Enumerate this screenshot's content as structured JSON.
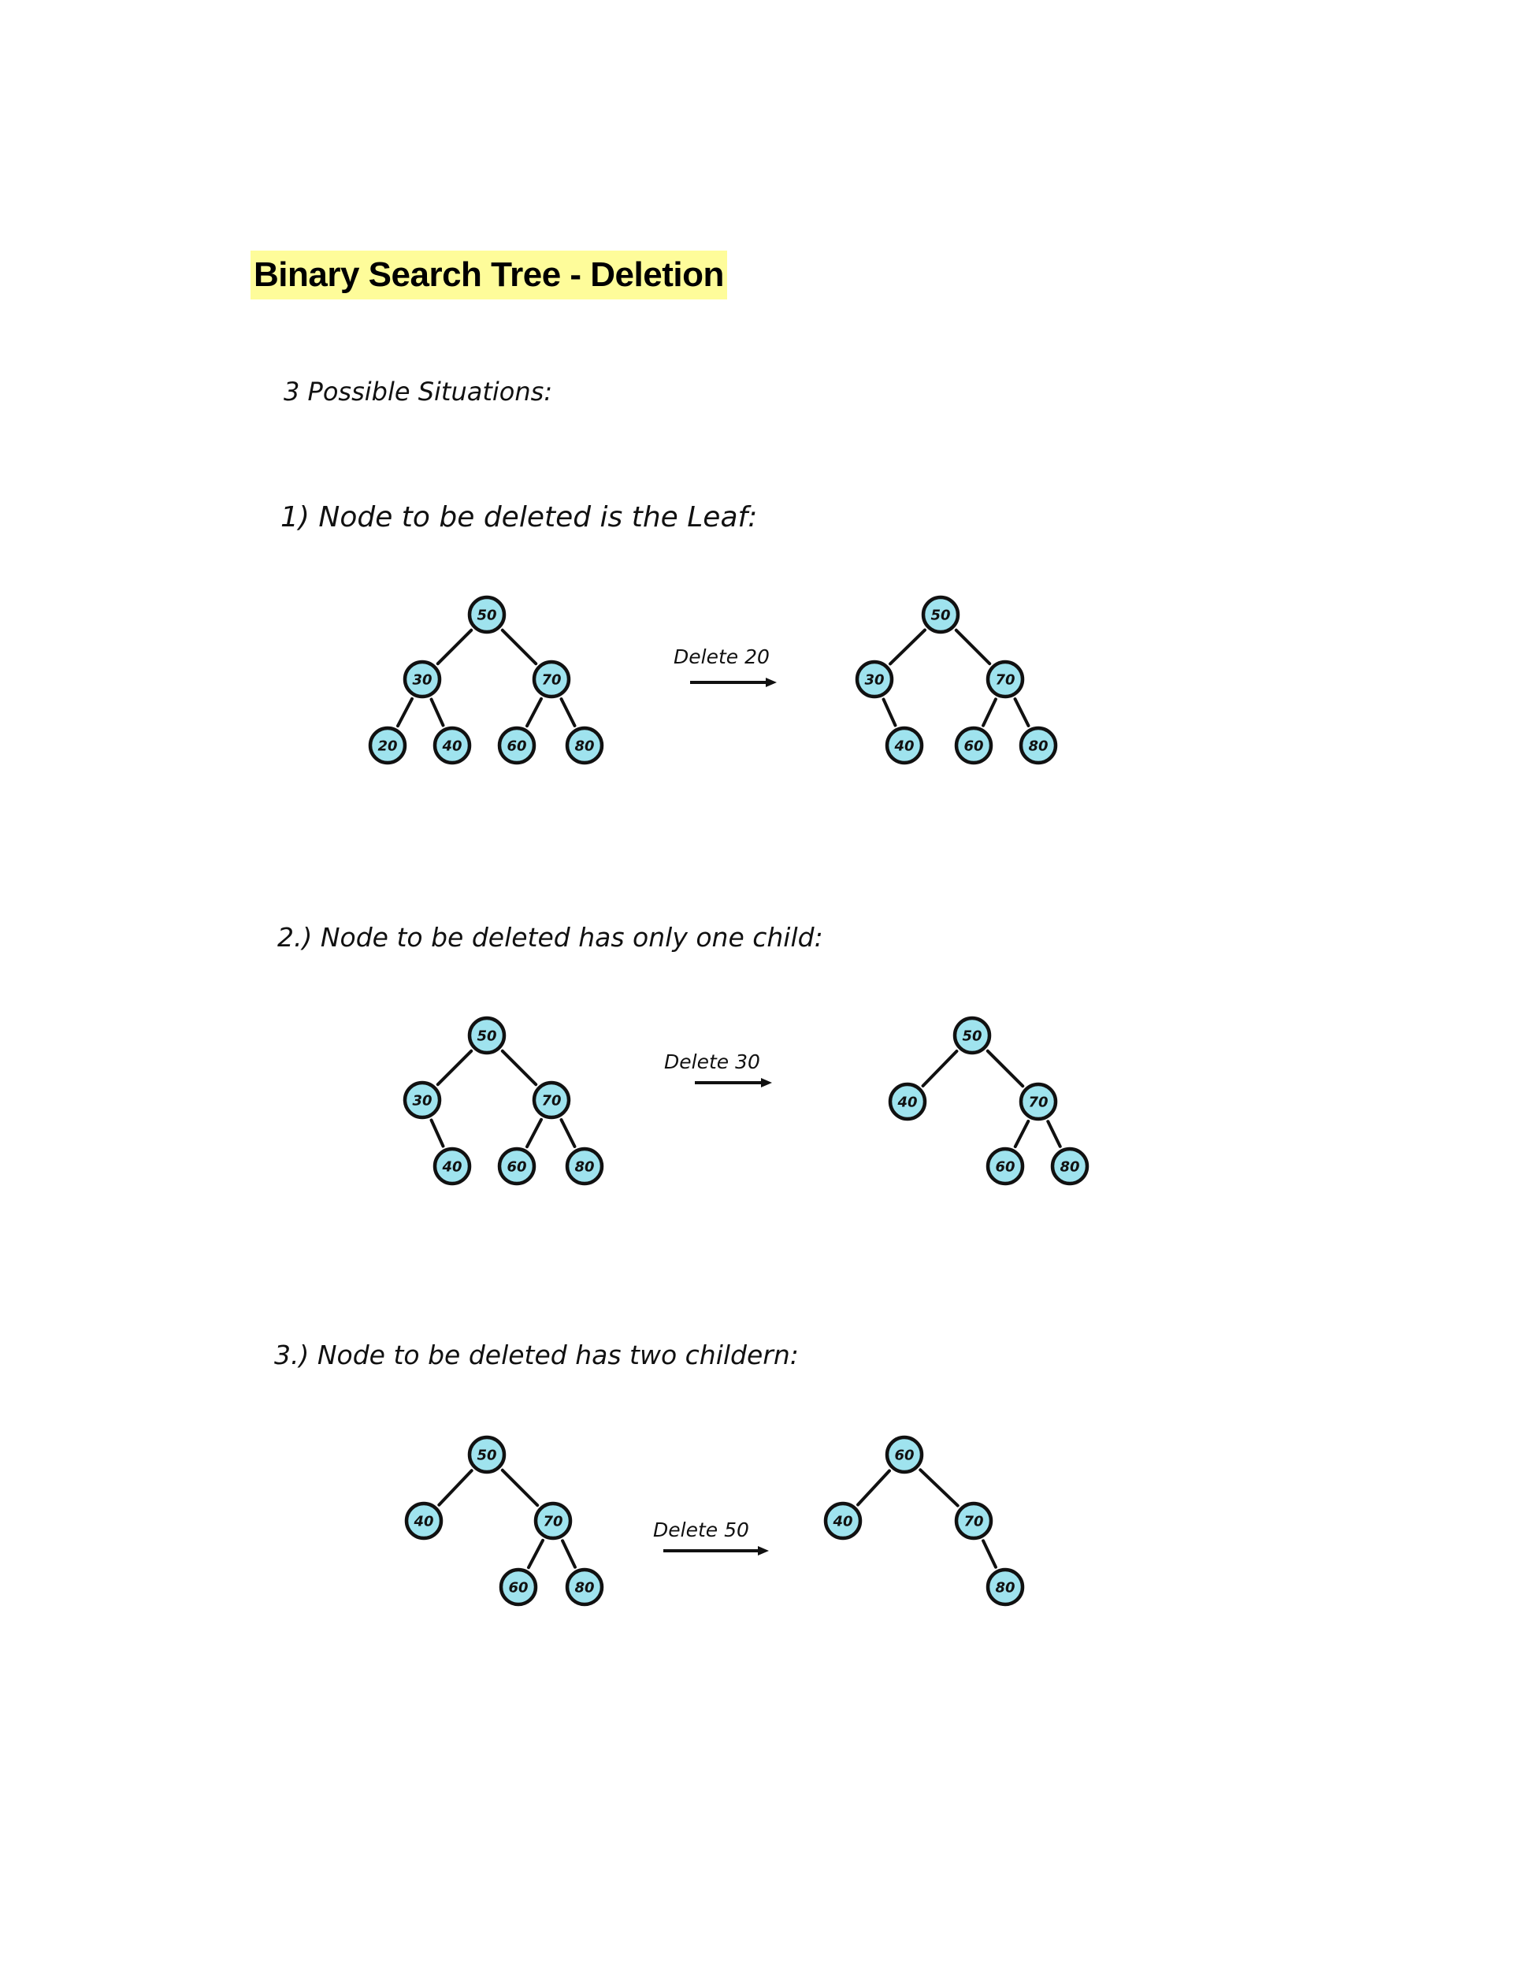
{
  "title": "Binary Search Tree - Deletion",
  "intro": "3 Possible Situations:",
  "cases": [
    {
      "heading": "1) Node to be deleted is the Leaf:",
      "operation": "Delete 20",
      "before": {
        "nodes": [
          {
            "id": "n50",
            "label": "50"
          },
          {
            "id": "n30",
            "label": "30"
          },
          {
            "id": "n70",
            "label": "70"
          },
          {
            "id": "n20",
            "label": "20"
          },
          {
            "id": "n40",
            "label": "40"
          },
          {
            "id": "n60",
            "label": "60"
          },
          {
            "id": "n80",
            "label": "80"
          }
        ],
        "edges": [
          [
            "n50",
            "n30"
          ],
          [
            "n50",
            "n70"
          ],
          [
            "n30",
            "n20"
          ],
          [
            "n30",
            "n40"
          ],
          [
            "n70",
            "n60"
          ],
          [
            "n70",
            "n80"
          ]
        ]
      },
      "after": {
        "nodes": [
          {
            "id": "n50",
            "label": "50"
          },
          {
            "id": "n30",
            "label": "30"
          },
          {
            "id": "n70",
            "label": "70"
          },
          {
            "id": "n40",
            "label": "40"
          },
          {
            "id": "n60",
            "label": "60"
          },
          {
            "id": "n80",
            "label": "80"
          }
        ],
        "edges": [
          [
            "n50",
            "n30"
          ],
          [
            "n50",
            "n70"
          ],
          [
            "n30",
            "n40"
          ],
          [
            "n70",
            "n60"
          ],
          [
            "n70",
            "n80"
          ]
        ]
      }
    },
    {
      "heading": "2.) Node to be deleted has only one child:",
      "operation": "Delete 30",
      "before": {
        "nodes": [
          {
            "id": "n50",
            "label": "50"
          },
          {
            "id": "n30",
            "label": "30"
          },
          {
            "id": "n70",
            "label": "70"
          },
          {
            "id": "n40",
            "label": "40"
          },
          {
            "id": "n60",
            "label": "60"
          },
          {
            "id": "n80",
            "label": "80"
          }
        ],
        "edges": [
          [
            "n50",
            "n30"
          ],
          [
            "n50",
            "n70"
          ],
          [
            "n30",
            "n40"
          ],
          [
            "n70",
            "n60"
          ],
          [
            "n70",
            "n80"
          ]
        ]
      },
      "after": {
        "nodes": [
          {
            "id": "n50",
            "label": "50"
          },
          {
            "id": "n40",
            "label": "40"
          },
          {
            "id": "n70",
            "label": "70"
          },
          {
            "id": "n60",
            "label": "60"
          },
          {
            "id": "n80",
            "label": "80"
          }
        ],
        "edges": [
          [
            "n50",
            "n40"
          ],
          [
            "n50",
            "n70"
          ],
          [
            "n70",
            "n60"
          ],
          [
            "n70",
            "n80"
          ]
        ]
      }
    },
    {
      "heading": "3.) Node to be deleted has two childern:",
      "operation": "Delete 50",
      "before": {
        "nodes": [
          {
            "id": "n50",
            "label": "50"
          },
          {
            "id": "n40",
            "label": "40"
          },
          {
            "id": "n70",
            "label": "70"
          },
          {
            "id": "n60",
            "label": "60"
          },
          {
            "id": "n80",
            "label": "80"
          }
        ],
        "edges": [
          [
            "n50",
            "n40"
          ],
          [
            "n50",
            "n70"
          ],
          [
            "n70",
            "n60"
          ],
          [
            "n70",
            "n80"
          ]
        ]
      },
      "after": {
        "nodes": [
          {
            "id": "n60",
            "label": "60"
          },
          {
            "id": "n40",
            "label": "40"
          },
          {
            "id": "n70",
            "label": "70"
          },
          {
            "id": "n80",
            "label": "80"
          }
        ],
        "edges": [
          [
            "n60",
            "n40"
          ],
          [
            "n60",
            "n70"
          ],
          [
            "n70",
            "n80"
          ]
        ]
      }
    }
  ],
  "colors": {
    "title_highlight": "#fefc9a",
    "node_fill": "#9fe3ee",
    "stroke": "#111111"
  }
}
